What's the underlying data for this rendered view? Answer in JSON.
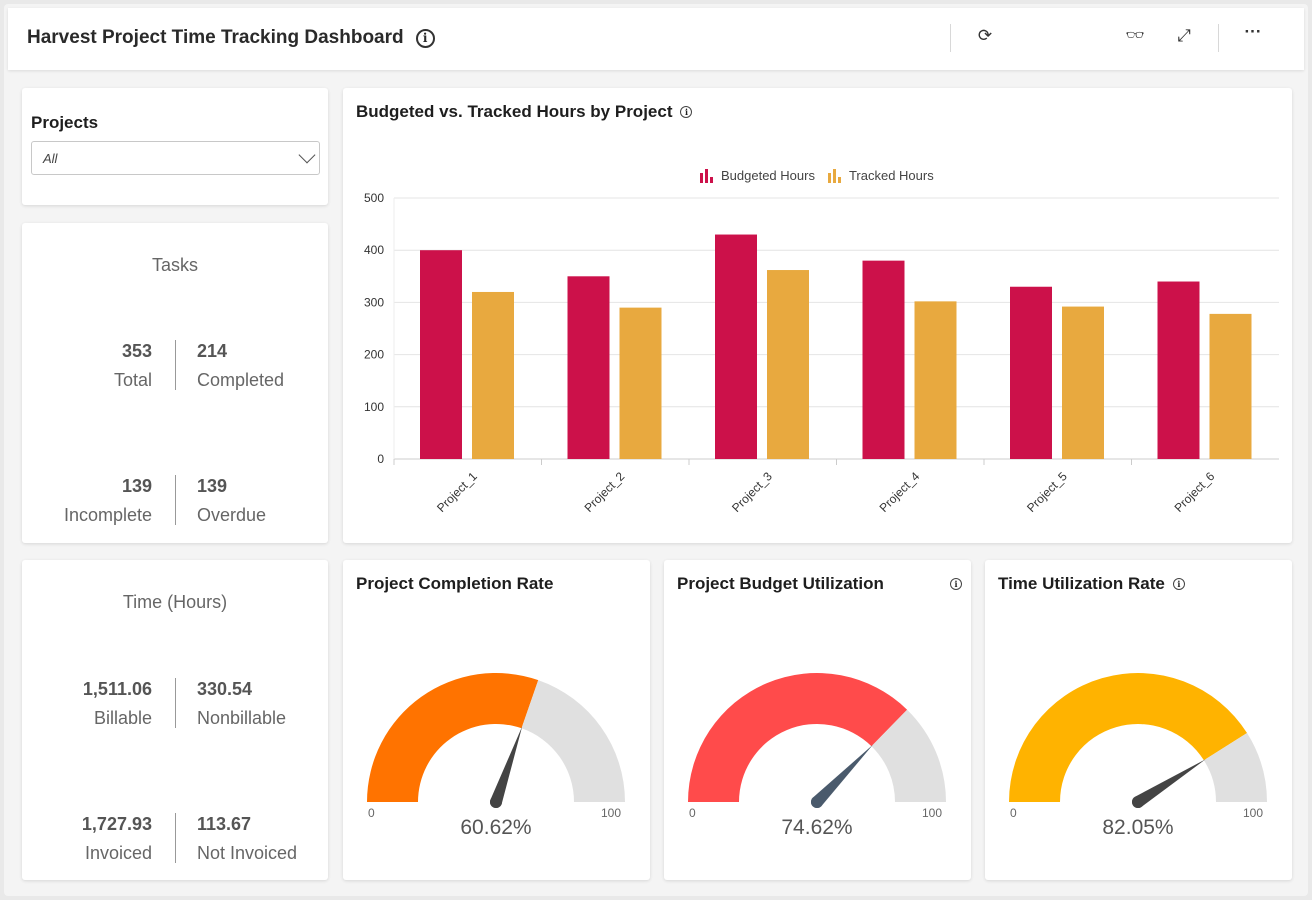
{
  "header": {
    "title": "Harvest Project Time Tracking Dashboard",
    "icons": [
      "info-icon",
      "refresh-icon",
      "glasses-icon",
      "expand-icon",
      "more-icon"
    ]
  },
  "filter": {
    "label": "Projects",
    "value": "All"
  },
  "tasks": {
    "title": "Tasks",
    "total": "353",
    "total_label": "Total",
    "completed": "214",
    "completed_label": "Completed",
    "incomplete": "139",
    "incomplete_label": "Incomplete",
    "overdue": "139",
    "overdue_label": "Overdue"
  },
  "time": {
    "title": "Time (Hours)",
    "billable": "1,511.06",
    "billable_label": "Billable",
    "nonbillable": "330.54",
    "nonbillable_label": "Nonbillable",
    "invoiced": "1,727.93",
    "invoiced_label": "Invoiced",
    "not_invoiced": "113.67",
    "not_invoiced_label": "Not Invoiced"
  },
  "chart_data": {
    "type": "bar",
    "title": "Budgeted vs. Tracked Hours by Project",
    "categories": [
      "Project_1",
      "Project_2",
      "Project_3",
      "Project_4",
      "Project_5",
      "Project_6"
    ],
    "series": [
      {
        "name": "Budgeted Hours",
        "color": "#cc114a",
        "values": [
          400,
          350,
          430,
          380,
          330,
          340
        ]
      },
      {
        "name": "Tracked Hours",
        "color": "#e8a93f",
        "values": [
          320,
          290,
          362,
          302,
          292,
          278
        ]
      }
    ],
    "ylim": [
      0,
      500
    ],
    "yticks": [
      "0",
      "100",
      "200",
      "300",
      "400",
      "500"
    ],
    "grid": true,
    "legend": "top-center"
  },
  "gauges": [
    {
      "title": "Project Completion Rate",
      "value": 60.62,
      "label": "60.62%",
      "min": "0",
      "max": "100",
      "color": "#ff7300",
      "needle": "#444444",
      "info": false
    },
    {
      "title": "Project Budget Utilization",
      "value": 74.62,
      "label": "74.62%",
      "min": "0",
      "max": "100",
      "color": "#ff4b4b",
      "needle": "#4a5a6c",
      "info": true
    },
    {
      "title": "Time Utilization Rate",
      "value": 82.05,
      "label": "82.05%",
      "min": "0",
      "max": "100",
      "color": "#ffb300",
      "needle": "#444444",
      "info": true
    }
  ]
}
